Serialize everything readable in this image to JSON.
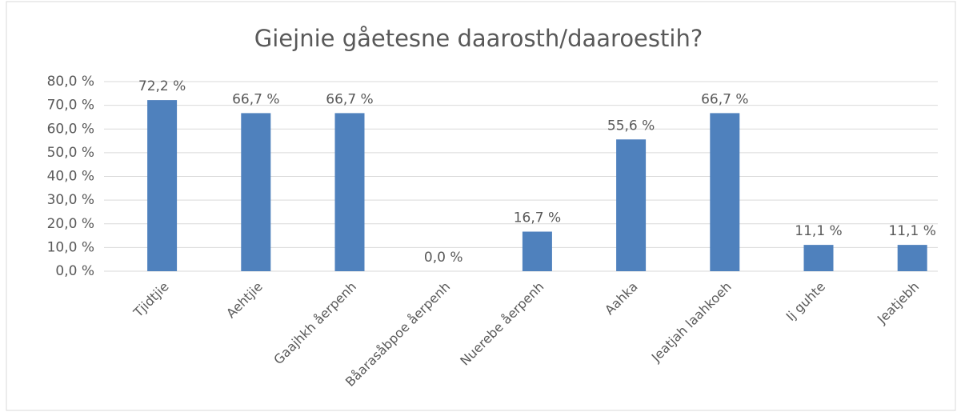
{
  "chart_data": {
    "type": "bar",
    "title": "Giejnie gåetesne daarosth/daaroestih?",
    "categories": [
      "Tjidtjie",
      "Aehtjie",
      "Gaajhkh åerpenh",
      "Båarasåbpoe åerpenh",
      "Nuerebe åerpenh",
      "Aahka",
      "Jeatjah laahkoeh",
      "Ij guhte",
      "Jeatjebh"
    ],
    "values": [
      72.2,
      66.7,
      66.7,
      0,
      16.7,
      55.6,
      66.7,
      11.1,
      11.1
    ],
    "value_labels": [
      "72,2 %",
      "66,7 %",
      "66,7 %",
      "0,0 %",
      "16,7 %",
      "55,6 %",
      "66,7 %",
      "11,1 %",
      "11,1 %"
    ],
    "color": "#4f81bd",
    "ylim": [
      0,
      80
    ],
    "yticks": [
      {
        "value": 0,
        "label": "0,0 %"
      },
      {
        "value": 10,
        "label": "10,0 %"
      },
      {
        "value": 20,
        "label": "20,0 %"
      },
      {
        "value": 30,
        "label": "30,0 %"
      },
      {
        "value": 40,
        "label": "40,0 %"
      },
      {
        "value": 50,
        "label": "50,0 %"
      },
      {
        "value": 60,
        "label": "60,0 %"
      },
      {
        "value": 70,
        "label": "70,0 %"
      },
      {
        "value": 80,
        "label": "80,0 %"
      }
    ],
    "grid": true
  }
}
